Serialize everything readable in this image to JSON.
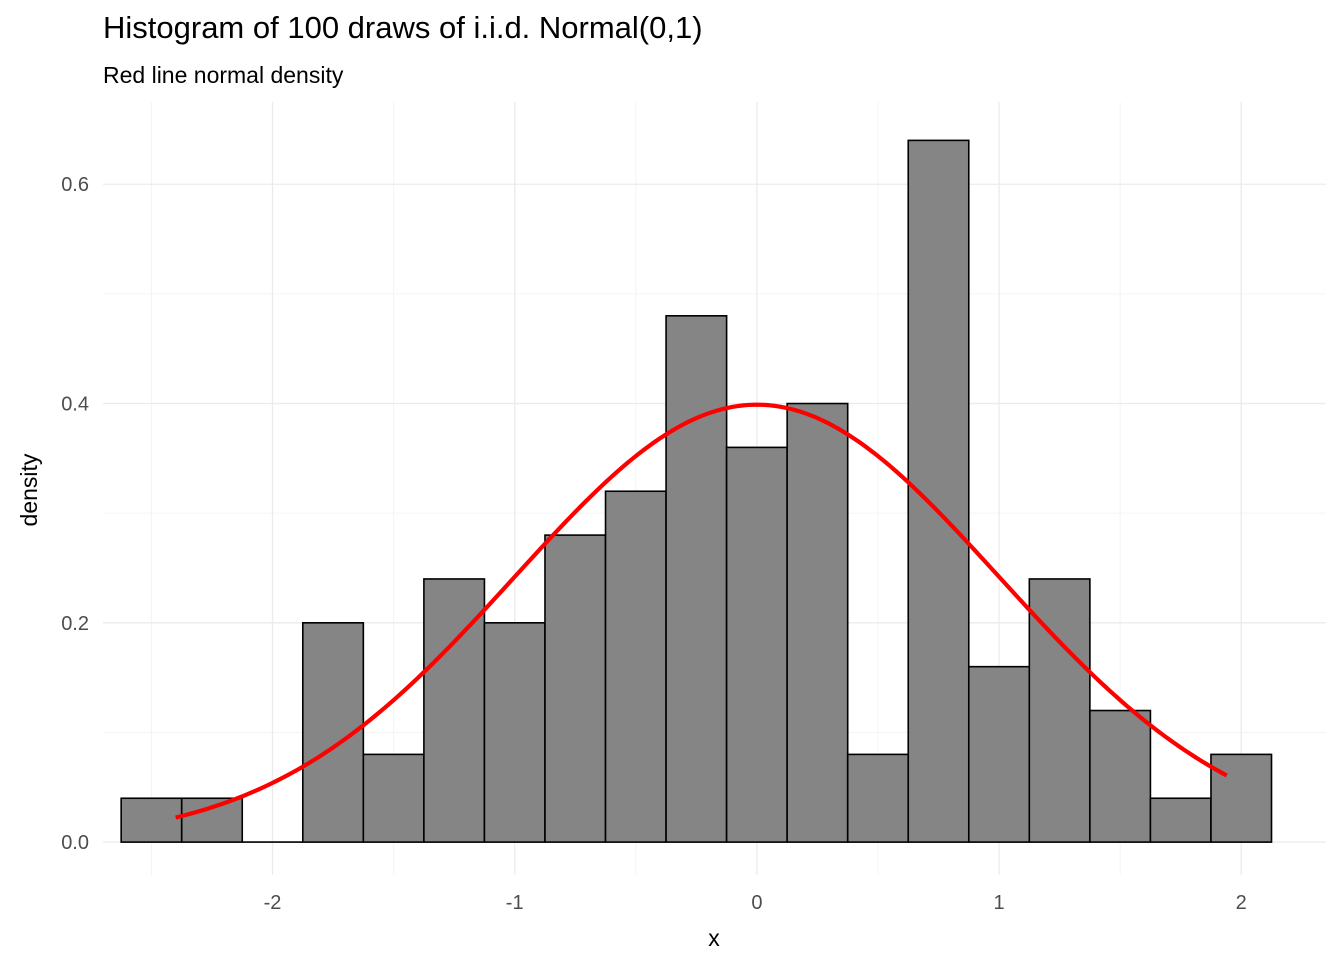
{
  "chart_data": {
    "type": "bar",
    "title": "Histogram of 100 draws of i.i.d. Normal(0,1)",
    "subtitle": "Red line normal density",
    "xlabel": "x",
    "ylabel": "density",
    "xlim": [
      -2.7,
      2.35
    ],
    "ylim": [
      -0.03,
      0.675
    ],
    "x_ticks": [
      -2,
      -1,
      0,
      1,
      2
    ],
    "x_tick_labels": [
      "-2",
      "-1",
      "0",
      "1",
      "2"
    ],
    "y_ticks": [
      0.0,
      0.2,
      0.4,
      0.6
    ],
    "y_tick_labels": [
      "0.0",
      "0.2",
      "0.4",
      "0.6"
    ],
    "bin_width": 0.25,
    "bins": [
      {
        "x0": -2.625,
        "x1": -2.375,
        "density": 0.04
      },
      {
        "x0": -2.375,
        "x1": -2.125,
        "density": 0.04
      },
      {
        "x0": -2.125,
        "x1": -1.875,
        "density": 0.0
      },
      {
        "x0": -1.875,
        "x1": -1.625,
        "density": 0.2
      },
      {
        "x0": -1.625,
        "x1": -1.375,
        "density": 0.08
      },
      {
        "x0": -1.375,
        "x1": -1.125,
        "density": 0.24
      },
      {
        "x0": -1.125,
        "x1": -0.875,
        "density": 0.2
      },
      {
        "x0": -0.875,
        "x1": -0.625,
        "density": 0.28
      },
      {
        "x0": -0.625,
        "x1": -0.375,
        "density": 0.32
      },
      {
        "x0": -0.375,
        "x1": -0.125,
        "density": 0.48
      },
      {
        "x0": -0.125,
        "x1": 0.125,
        "density": 0.36
      },
      {
        "x0": 0.125,
        "x1": 0.375,
        "density": 0.4
      },
      {
        "x0": 0.375,
        "x1": 0.625,
        "density": 0.08
      },
      {
        "x0": 0.625,
        "x1": 0.875,
        "density": 0.64
      },
      {
        "x0": 0.875,
        "x1": 1.125,
        "density": 0.16
      },
      {
        "x0": 1.125,
        "x1": 1.375,
        "density": 0.24
      },
      {
        "x0": 1.375,
        "x1": 1.625,
        "density": 0.12
      },
      {
        "x0": 1.625,
        "x1": 1.875,
        "density": 0.04
      },
      {
        "x0": 1.875,
        "x1": 2.125,
        "density": 0.08
      }
    ],
    "density_curve": {
      "name": "Normal(0,1) density",
      "x_range": [
        -2.4,
        1.94
      ],
      "mean": 0,
      "sd": 1
    },
    "grid": true,
    "colors": {
      "bar_fill": "#858585",
      "bar_stroke": "#000000",
      "curve": "#ff0000",
      "grid_major": "#ebebeb",
      "grid_minor": "#f4f4f4"
    }
  }
}
